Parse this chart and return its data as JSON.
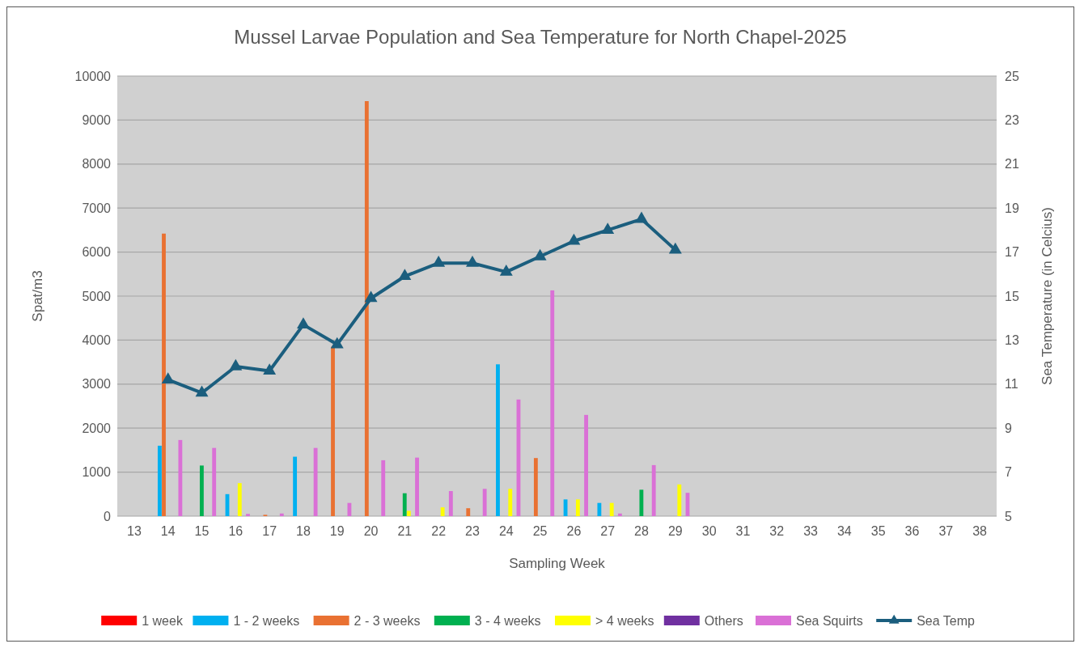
{
  "chart_data": {
    "type": "bar",
    "title": "Mussel Larvae Population and Sea Temperature for North Chapel-2025",
    "xlabel": "Sampling Week",
    "ylabel": "Spat/m3",
    "y2label": "Sea Temperature (in Celcius)",
    "categories": [
      "13",
      "14",
      "15",
      "16",
      "17",
      "18",
      "19",
      "20",
      "21",
      "22",
      "23",
      "24",
      "25",
      "26",
      "27",
      "28",
      "29",
      "30",
      "31",
      "32",
      "33",
      "34",
      "35",
      "36",
      "37",
      "38"
    ],
    "series": [
      {
        "name": "1 week",
        "color": "#ff0000",
        "values": [
          null,
          null,
          null,
          null,
          null,
          null,
          null,
          null,
          null,
          null,
          null,
          null,
          null,
          null,
          null,
          null,
          null,
          null,
          null,
          null,
          null,
          null,
          null,
          null,
          null,
          null
        ]
      },
      {
        "name": "1 - 2 weeks",
        "color": "#00b0f0",
        "values": [
          null,
          1600,
          null,
          500,
          null,
          1350,
          null,
          null,
          null,
          null,
          null,
          3450,
          null,
          380,
          300,
          null,
          null,
          null,
          null,
          null,
          null,
          null,
          null,
          null,
          null,
          null
        ]
      },
      {
        "name": "2 - 3 weeks",
        "color": "#e97132",
        "values": [
          null,
          6420,
          null,
          null,
          30,
          null,
          3850,
          9430,
          null,
          null,
          180,
          null,
          1320,
          null,
          null,
          null,
          null,
          null,
          null,
          null,
          null,
          null,
          null,
          null,
          null,
          null
        ]
      },
      {
        "name": "3 - 4 weeks",
        "color": "#00b050",
        "values": [
          null,
          null,
          1150,
          null,
          null,
          null,
          null,
          null,
          520,
          null,
          null,
          null,
          null,
          null,
          null,
          600,
          null,
          null,
          null,
          null,
          null,
          null,
          null,
          null,
          null,
          null
        ]
      },
      {
        "name": "> 4 weeks",
        "color": "#ffff00",
        "values": [
          null,
          null,
          null,
          750,
          null,
          null,
          null,
          null,
          120,
          200,
          null,
          620,
          null,
          380,
          300,
          null,
          720,
          null,
          null,
          null,
          null,
          null,
          null,
          null,
          null,
          null
        ]
      },
      {
        "name": "Others",
        "color": "#7030a0",
        "values": [
          null,
          null,
          null,
          null,
          null,
          null,
          null,
          null,
          null,
          null,
          null,
          null,
          null,
          null,
          null,
          null,
          null,
          null,
          null,
          null,
          null,
          null,
          null,
          null,
          null,
          null
        ]
      },
      {
        "name": "Sea Squirts",
        "color": "#da70d6",
        "values": [
          null,
          1730,
          1550,
          50,
          60,
          1550,
          300,
          1270,
          1330,
          570,
          620,
          2650,
          5130,
          2300,
          60,
          1160,
          530,
          null,
          null,
          null,
          null,
          null,
          null,
          null,
          null,
          null
        ]
      },
      {
        "name": "Sea Temp",
        "type": "line",
        "axis": "y2",
        "marker": "triangle",
        "color": "#1b5e7e",
        "values": [
          null,
          11.2,
          10.6,
          11.8,
          11.6,
          13.7,
          12.8,
          14.9,
          15.9,
          16.5,
          16.5,
          16.1,
          16.8,
          17.5,
          18.0,
          18.5,
          17.1,
          null,
          null,
          null,
          null,
          null,
          null,
          null,
          null,
          null
        ]
      }
    ],
    "ylim": [
      0,
      10000
    ],
    "yticks": [
      0,
      1000,
      2000,
      3000,
      4000,
      5000,
      6000,
      7000,
      8000,
      9000,
      10000
    ],
    "y2lim": [
      5,
      25
    ],
    "y2ticks": [
      5,
      7,
      9,
      11,
      13,
      15,
      17,
      19,
      21,
      23,
      25
    ],
    "grid": "y",
    "legend": "bottom"
  }
}
